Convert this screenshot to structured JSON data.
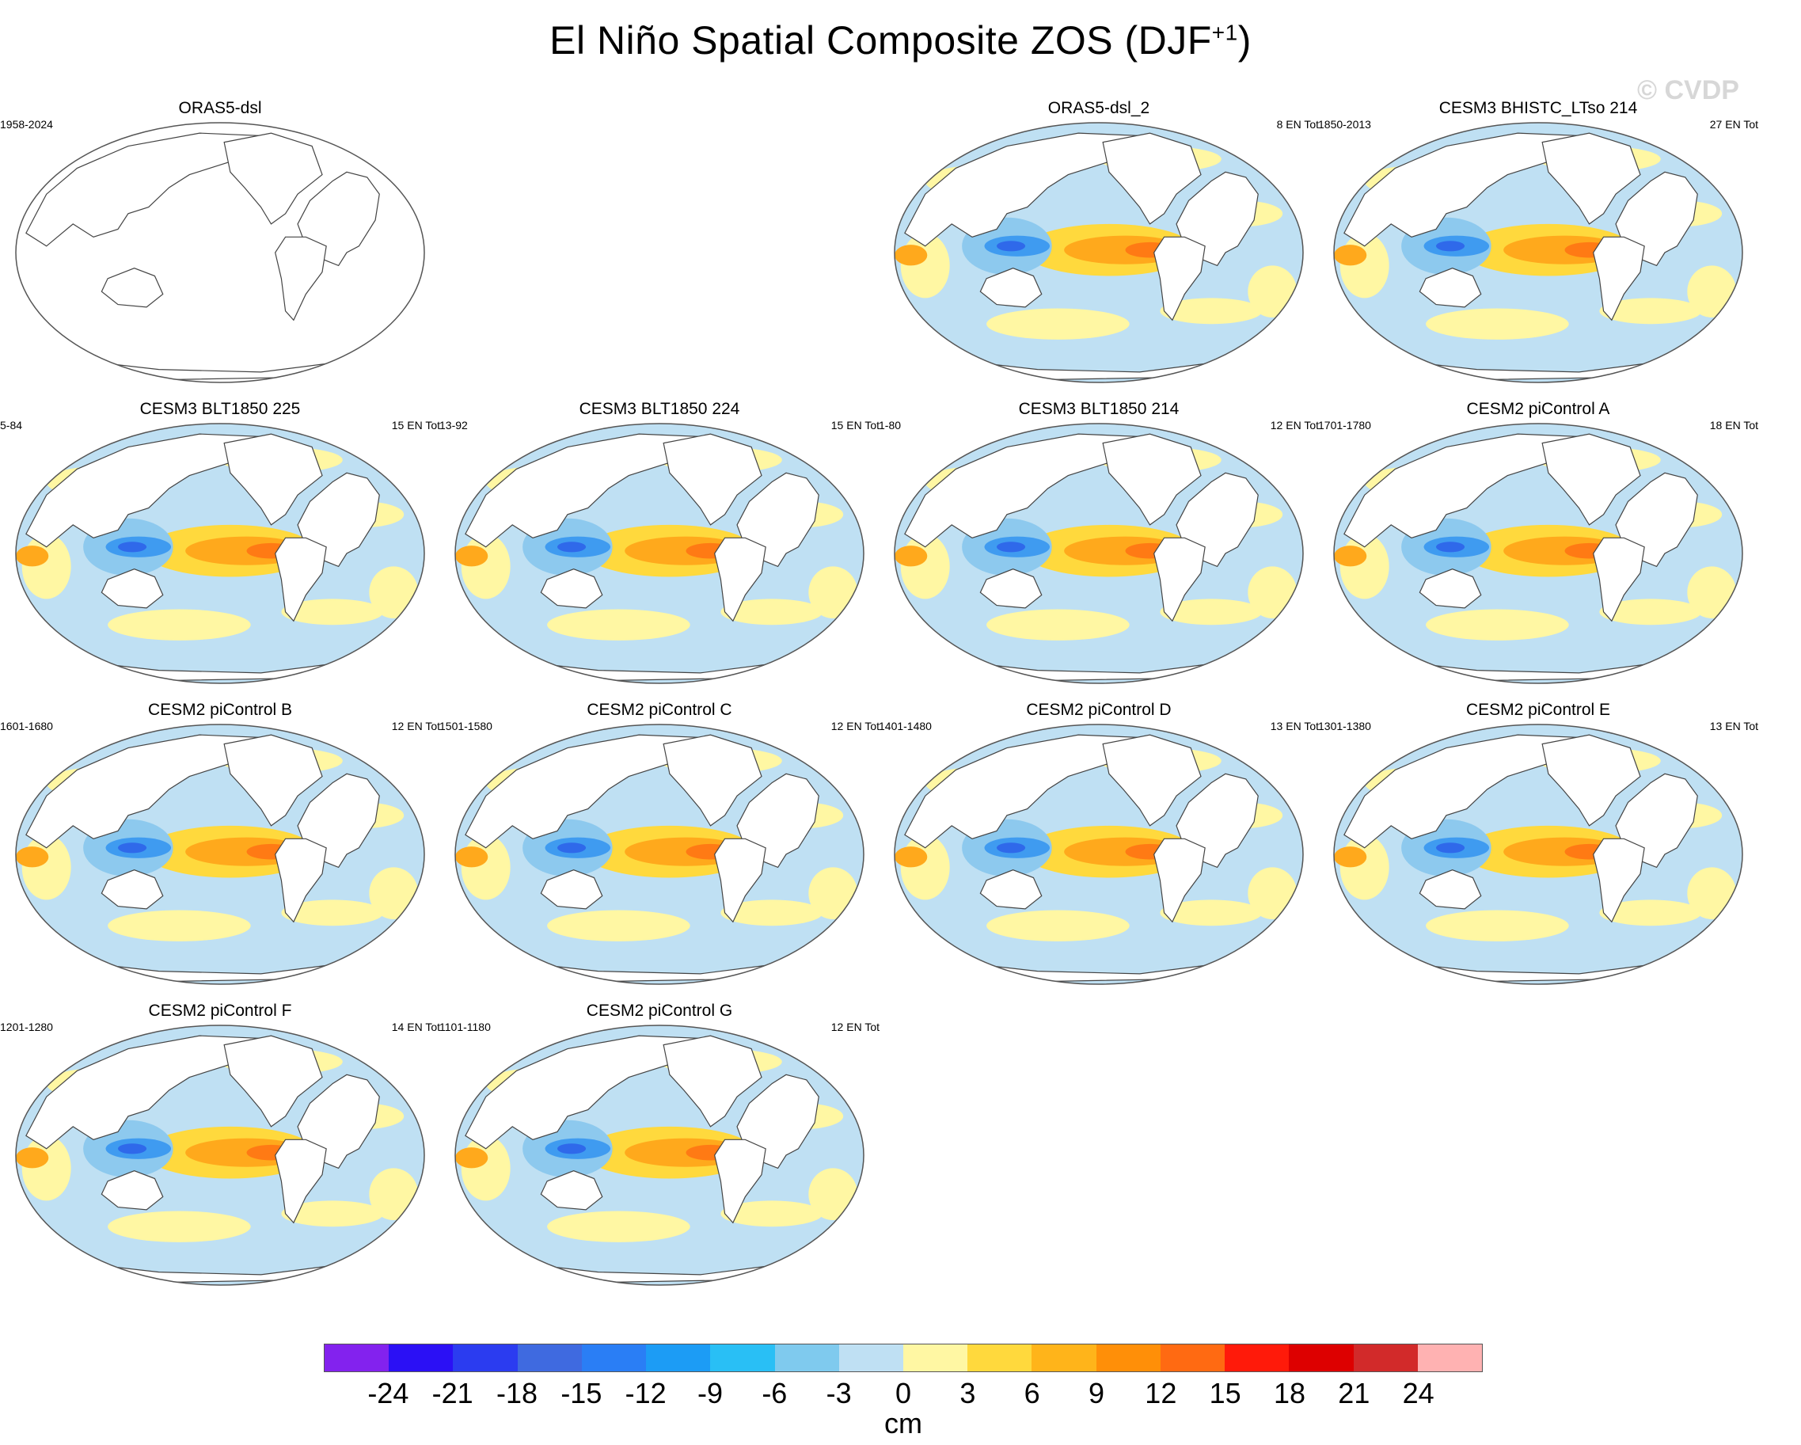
{
  "title": {
    "main": "El Niño Spatial Composite ZOS (DJF",
    "sup": "+1",
    "close": ")"
  },
  "watermark": "© CVDP",
  "colors": {
    "land": "#ffffff",
    "coast": "#444444",
    "ocean_bg": "#bfe0f3",
    "pos_light": "#fff7a3",
    "pos_mid": "#ffd93d",
    "pos_strong": "#ffa91c",
    "pos_max": "#ff7a14",
    "neg_mid": "#8dc9ee",
    "neg_strong": "#3f9bf0",
    "neg_max": "#2f69ea"
  },
  "panels": [
    {
      "title": "ORAS5-dsl",
      "left_label": "1958-2024",
      "right_label": "",
      "empty": true
    },
    {
      "title": "ORAS5-dsl_2",
      "left_label": "",
      "right_label": "8 EN Tot",
      "empty": false
    },
    {
      "title": "CESM3 BHISTC_LTso 214",
      "left_label": "1850-2013",
      "right_label": "27 EN Tot",
      "empty": false
    },
    {
      "title": "CESM3 BLT1850 225",
      "left_label": "5-84",
      "right_label": "15 EN Tot",
      "empty": false
    },
    {
      "title": "CESM3 BLT1850 224",
      "left_label": "13-92",
      "right_label": "15 EN Tot",
      "empty": false
    },
    {
      "title": "CESM3 BLT1850 214",
      "left_label": "1-80",
      "right_label": "12 EN Tot",
      "empty": false
    },
    {
      "title": "CESM2 piControl A",
      "left_label": "1701-1780",
      "right_label": "18 EN Tot",
      "empty": false
    },
    {
      "title": "CESM2 piControl B",
      "left_label": "1601-1680",
      "right_label": "12 EN Tot",
      "empty": false
    },
    {
      "title": "CESM2 piControl C",
      "left_label": "1501-1580",
      "right_label": "12 EN Tot",
      "empty": false
    },
    {
      "title": "CESM2 piControl D",
      "left_label": "1401-1480",
      "right_label": "13 EN Tot",
      "empty": false
    },
    {
      "title": "CESM2 piControl E",
      "left_label": "1301-1380",
      "right_label": "13 EN Tot",
      "empty": false
    },
    {
      "title": "CESM2 piControl F",
      "left_label": "1201-1280",
      "right_label": "14 EN Tot",
      "empty": false
    },
    {
      "title": "CESM2 piControl G",
      "left_label": "1101-1180",
      "right_label": "12 EN Tot",
      "empty": false
    }
  ],
  "colorbar": {
    "colors": [
      "#8322ee",
      "#2b10f5",
      "#2b3cf0",
      "#3f6ae0",
      "#2a7ef5",
      "#1c9cf5",
      "#29bff5",
      "#7fcaee",
      "#bfe0f3",
      "#fff7a3",
      "#ffd93d",
      "#ffb41a",
      "#ff8f08",
      "#ff6a12",
      "#ff1a0a",
      "#dd0000",
      "#d22a2a",
      "#ffb2b2"
    ],
    "ticks": [
      "-24",
      "-21",
      "-18",
      "-15",
      "-12",
      "-9",
      "-6",
      "-3",
      "0",
      "3",
      "6",
      "9",
      "12",
      "15",
      "18",
      "21",
      "24"
    ],
    "units": "cm"
  }
}
